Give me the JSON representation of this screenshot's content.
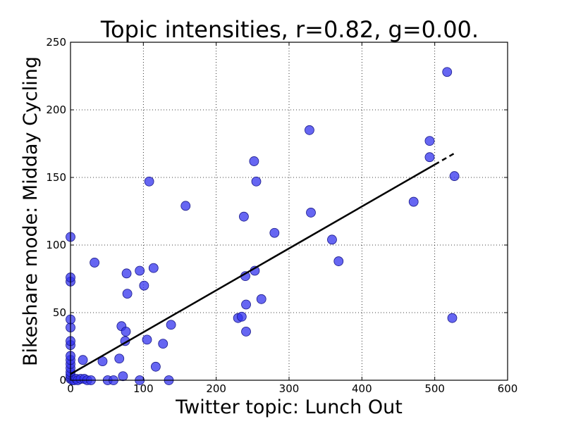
{
  "chart_data": {
    "type": "scatter",
    "title": "Topic intensities,   r=0.82, g=0.00.",
    "xlabel": "Twitter topic: Lunch Out",
    "ylabel": "Bikeshare mode: Midday Cycling",
    "xlim": [
      0,
      600
    ],
    "ylim": [
      0,
      250
    ],
    "x_ticks": [
      "0",
      "100",
      "200",
      "300",
      "400",
      "500",
      "600"
    ],
    "y_ticks": [
      "0",
      "50",
      "100",
      "150",
      "200",
      "250"
    ],
    "grid": true,
    "grid_style": "dotted",
    "marker_color": "#3333ee",
    "fit_line": {
      "intercept": 4.5,
      "slope": 0.31,
      "solid_x": [
        0,
        500
      ],
      "dashed_x": [
        500,
        530
      ]
    },
    "points": [
      [
        0,
        1
      ],
      [
        0,
        2
      ],
      [
        0,
        4
      ],
      [
        0,
        6
      ],
      [
        0,
        9
      ],
      [
        0,
        12
      ],
      [
        0,
        15
      ],
      [
        0,
        18
      ],
      [
        0,
        26
      ],
      [
        0,
        29
      ],
      [
        0,
        39
      ],
      [
        0,
        45
      ],
      [
        0,
        73
      ],
      [
        0,
        76
      ],
      [
        0,
        106
      ],
      [
        3,
        0
      ],
      [
        5,
        0
      ],
      [
        8,
        1
      ],
      [
        10,
        0
      ],
      [
        14,
        1
      ],
      [
        17,
        15
      ],
      [
        19,
        1
      ],
      [
        23,
        0
      ],
      [
        28,
        0
      ],
      [
        33,
        87
      ],
      [
        44,
        14
      ],
      [
        51,
        0
      ],
      [
        59,
        0
      ],
      [
        67,
        16
      ],
      [
        70,
        40
      ],
      [
        72,
        3
      ],
      [
        75,
        29
      ],
      [
        76,
        36
      ],
      [
        77,
        79
      ],
      [
        78,
        64
      ],
      [
        95,
        0
      ],
      [
        95,
        81
      ],
      [
        101,
        70
      ],
      [
        105,
        30
      ],
      [
        108,
        147
      ],
      [
        114,
        83
      ],
      [
        117,
        10
      ],
      [
        127,
        27
      ],
      [
        135,
        0
      ],
      [
        138,
        41
      ],
      [
        158,
        129
      ],
      [
        230,
        46
      ],
      [
        235,
        47
      ],
      [
        238,
        121
      ],
      [
        240,
        77
      ],
      [
        241,
        56
      ],
      [
        241,
        36
      ],
      [
        252,
        162
      ],
      [
        253,
        81
      ],
      [
        255,
        147
      ],
      [
        262,
        60
      ],
      [
        280,
        109
      ],
      [
        328,
        185
      ],
      [
        330,
        124
      ],
      [
        359,
        104
      ],
      [
        368,
        88
      ],
      [
        471,
        132
      ],
      [
        493,
        177
      ],
      [
        493,
        165
      ],
      [
        517,
        228
      ],
      [
        524,
        46
      ],
      [
        527,
        151
      ]
    ]
  }
}
